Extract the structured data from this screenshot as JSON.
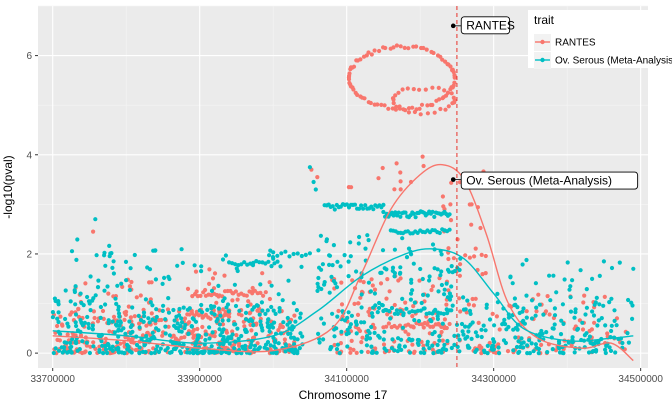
{
  "chart_data": {
    "type": "scatter",
    "xlabel": "Chromosome 17",
    "ylabel": "-log10(pval)",
    "xlim": [
      33680000,
      34510000
    ],
    "ylim": [
      -0.3,
      7.0
    ],
    "x_ticks": [
      {
        "value": 33700000,
        "label": "33700000"
      },
      {
        "value": 33900000,
        "label": "33900000"
      },
      {
        "value": 34100000,
        "label": "34100000"
      },
      {
        "value": 34300000,
        "label": "34300000"
      },
      {
        "value": 34500000,
        "label": "34500000"
      }
    ],
    "y_ticks": [
      {
        "value": 0,
        "label": "0"
      },
      {
        "value": 2,
        "label": "2"
      },
      {
        "value": 4,
        "label": "4"
      },
      {
        "value": 6,
        "label": "6"
      }
    ],
    "grid": true,
    "legend": {
      "title": "trait",
      "position": "top-right",
      "entries": [
        {
          "label": "RANTES",
          "color": "#F8766D"
        },
        {
          "label": "Ov. Serous (Meta-Analysis)",
          "color": "#00BFC4"
        }
      ]
    },
    "vline": {
      "x": 34250000,
      "color": "#E8312A",
      "style": "dashed"
    },
    "series": [
      {
        "name": "RANTES",
        "color": "#F8766D",
        "smooth": [
          [
            33700000,
            0.35
          ],
          [
            33800000,
            0.25
          ],
          [
            33900000,
            0.1
          ],
          [
            34000000,
            0.05
          ],
          [
            34080000,
            0.5
          ],
          [
            34120000,
            1.6
          ],
          [
            34160000,
            2.9
          ],
          [
            34200000,
            3.6
          ],
          [
            34230000,
            3.8
          ],
          [
            34260000,
            3.5
          ],
          [
            34290000,
            2.4
          ],
          [
            34320000,
            1.0
          ],
          [
            34360000,
            0.3
          ],
          [
            34420000,
            0.1
          ],
          [
            34460000,
            0.2
          ],
          [
            34490000,
            -0.15
          ]
        ],
        "clusters": [
          {
            "x": [
              33700000,
              34030000
            ],
            "y": [
              0,
              0.9
            ],
            "n": 300
          },
          {
            "x": [
              33730000,
              33850000
            ],
            "y": [
              0.4,
              1.5
            ],
            "n": 35
          },
          {
            "x": [
              33880000,
              34000000
            ],
            "y": [
              0.8,
              1.8
            ],
            "n": 30
          },
          {
            "x": [
              34080000,
              34240000
            ],
            "y": [
              0,
              1.6
            ],
            "n": 120
          },
          {
            "x": [
              34250000,
              34480000
            ],
            "y": [
              0,
              1.2
            ],
            "n": 90
          },
          {
            "x": [
              34230000,
              34290000
            ],
            "y": [
              1.5,
              3.7
            ],
            "n": 30
          },
          {
            "x": [
              34100000,
              34220000
            ],
            "y": [
              3.3,
              4.0
            ],
            "n": 12
          }
        ],
        "rings": [
          {
            "cx": 34175000,
            "cy": 5.55,
            "rx": 72000,
            "ry": 0.62,
            "n": 85
          },
          {
            "cx": 34205000,
            "cy": 5.1,
            "rx": 42000,
            "ry": 0.25,
            "n": 30
          }
        ],
        "lines": [
          {
            "y": 1.2,
            "x0": 33890000,
            "x1": 33990000,
            "n": 28
          },
          {
            "y": 0.75,
            "x0": 33880000,
            "x1": 33940000,
            "n": 20
          },
          {
            "y": 0.55,
            "x0": 34150000,
            "x1": 34240000,
            "n": 25
          }
        ],
        "points": [
          [
            34245000,
            6.6
          ],
          [
            34285000,
            3.62
          ],
          [
            34292000,
            3.55
          ],
          [
            34060000,
            3.55
          ],
          [
            34052000,
            3.7
          ],
          [
            33755000,
            2.45
          ],
          [
            33805000,
            1.35
          ],
          [
            34270000,
            3.0
          ]
        ]
      },
      {
        "name": "Ov. Serous (Meta-Analysis)",
        "color": "#00BFC4",
        "smooth": [
          [
            33700000,
            0.45
          ],
          [
            33800000,
            0.35
          ],
          [
            33900000,
            0.2
          ],
          [
            34000000,
            0.35
          ],
          [
            34060000,
            0.85
          ],
          [
            34120000,
            1.55
          ],
          [
            34180000,
            2.0
          ],
          [
            34220000,
            2.1
          ],
          [
            34260000,
            1.9
          ],
          [
            34300000,
            1.2
          ],
          [
            34340000,
            0.5
          ],
          [
            34400000,
            0.25
          ],
          [
            34460000,
            0.3
          ],
          [
            34490000,
            0.35
          ]
        ],
        "clusters": [
          {
            "x": [
              33700000,
              34040000
            ],
            "y": [
              0,
              1.0
            ],
            "n": 420
          },
          {
            "x": [
              33700000,
              34040000
            ],
            "y": [
              1.0,
              2.1
            ],
            "n": 70
          },
          {
            "x": [
              34060000,
              34260000
            ],
            "y": [
              0,
              1.6
            ],
            "n": 180
          },
          {
            "x": [
              34060000,
              34260000
            ],
            "y": [
              1.6,
              2.4
            ],
            "n": 60
          },
          {
            "x": [
              34260000,
              34490000
            ],
            "y": [
              0,
              1.1
            ],
            "n": 200
          },
          {
            "x": [
              34300000,
              34490000
            ],
            "y": [
              1.1,
              1.9
            ],
            "n": 25
          },
          {
            "x": [
              33720000,
              33800000
            ],
            "y": [
              1.2,
              2.7
            ],
            "n": 15
          }
        ],
        "rings": [],
        "lines": [
          {
            "y": 2.95,
            "x0": 34070000,
            "x1": 34150000,
            "n": 30
          },
          {
            "y": 2.8,
            "x0": 34150000,
            "x1": 34240000,
            "n": 40
          },
          {
            "y": 2.45,
            "x0": 34160000,
            "x1": 34240000,
            "n": 25
          },
          {
            "y": 1.8,
            "x0": 33940000,
            "x1": 34010000,
            "n": 18
          },
          {
            "y": 2.0,
            "x0": 34000000,
            "x1": 34050000,
            "n": 10
          },
          {
            "y": 0.85,
            "x0": 34150000,
            "x1": 34240000,
            "n": 24
          }
        ],
        "points": [
          [
            34245000,
            3.5
          ],
          [
            34050000,
            3.75
          ],
          [
            34055000,
            3.45
          ],
          [
            34058000,
            3.3
          ],
          [
            34262000,
            3.45
          ],
          [
            33758000,
            2.7
          ],
          [
            34490000,
            1.7
          ],
          [
            34450000,
            1.85
          ]
        ]
      }
    ],
    "annotations": [
      {
        "label": "RANTES",
        "x": 34245000,
        "y": 6.6,
        "series": "RANTES"
      },
      {
        "label": "Ov. Serous (Meta-Analysis)",
        "x": 34245000,
        "y": 3.5,
        "series": "Ov. Serous (Meta-Analysis)"
      }
    ]
  }
}
